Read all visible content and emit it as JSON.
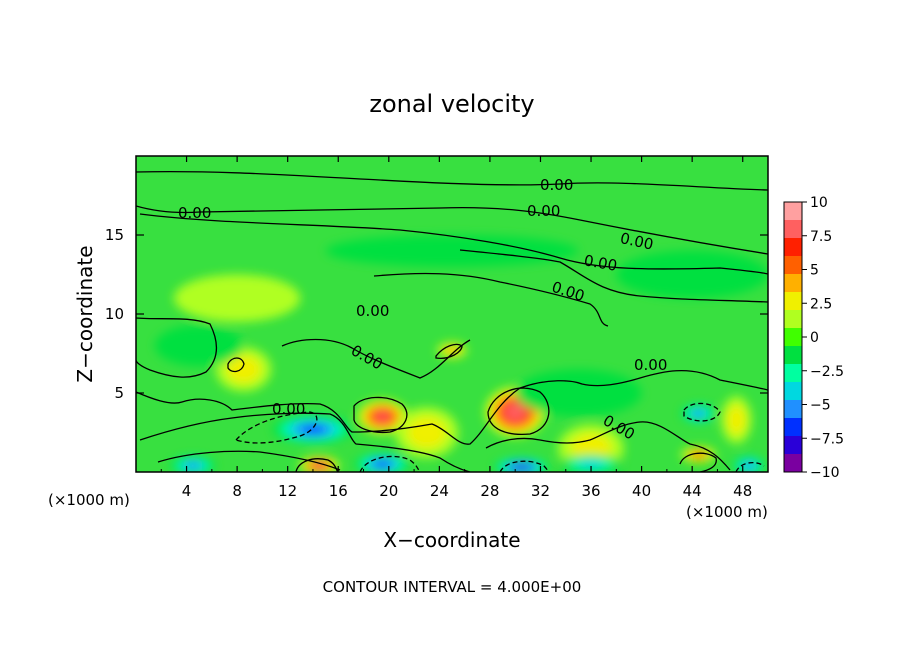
{
  "chart_data": {
    "type": "heatmap",
    "title": "zonal velocity",
    "xlabel": "X−coordinate",
    "ylabel": "Z−coordinate",
    "x_unit": "(×1000 m)",
    "x_unit_right": "(×1000 m)",
    "footer": "CONTOUR INTERVAL = 4.000E+00",
    "xlim": [
      0,
      50
    ],
    "ylim": [
      0,
      20
    ],
    "x_ticks": [
      4,
      8,
      12,
      16,
      20,
      24,
      28,
      32,
      36,
      40,
      44,
      48
    ],
    "y_ticks": [
      5,
      10,
      15
    ],
    "colorbar": {
      "range": [
        -10,
        10
      ],
      "ticks": [
        "10",
        "7.5",
        "5",
        "2.5",
        "0",
        "−2.5",
        "−5",
        "−7.5",
        "−10"
      ],
      "colors": [
        "#7a00a0",
        "#2a00d8",
        "#0030ff",
        "#2090ff",
        "#00d8e0",
        "#00ffa0",
        "#00e040",
        "#40ff00",
        "#b0ff20",
        "#f0f000",
        "#ffb000",
        "#ff6000",
        "#ff2000",
        "#ff6060",
        "#ffa0a0"
      ]
    },
    "contour_label": "0.00",
    "background_color": "#38e040",
    "features": [
      {
        "x": 30,
        "z": 3.8,
        "sx": 2.4,
        "sz": 1.6,
        "v": 8.5
      },
      {
        "x": 19.5,
        "z": 3.5,
        "sx": 2.0,
        "sz": 1.1,
        "v": 8.0
      },
      {
        "x": 14.5,
        "z": 0.4,
        "sx": 1.6,
        "sz": 0.6,
        "v": 8.0
      },
      {
        "x": 44.5,
        "z": 1.1,
        "sx": 1.4,
        "sz": 0.5,
        "v": 5.5
      },
      {
        "x": 25,
        "z": 7.7,
        "sx": 1.2,
        "sz": 0.5,
        "v": 4.5
      },
      {
        "x": 8.5,
        "z": 6.5,
        "sx": 2.2,
        "sz": 1.4,
        "v": 3.0
      },
      {
        "x": 36,
        "z": 1.5,
        "sx": 2.6,
        "sz": 1.5,
        "v": 2.5
      },
      {
        "x": 23,
        "z": 2.5,
        "sx": 2.5,
        "sz": 1.6,
        "v": 2.0
      },
      {
        "x": 47.5,
        "z": 3.3,
        "sx": 1.2,
        "sz": 1.5,
        "v": 2.5
      },
      {
        "x": 14,
        "z": 2.7,
        "sx": 3.2,
        "sz": 0.9,
        "v": -6.5
      },
      {
        "x": 19.5,
        "z": 0.5,
        "sx": 2.2,
        "sz": 0.7,
        "v": -6.5
      },
      {
        "x": 30.5,
        "z": 0.3,
        "sx": 2.2,
        "sz": 0.6,
        "v": -8.0
      },
      {
        "x": 44.5,
        "z": 3.7,
        "sx": 1.4,
        "sz": 0.6,
        "v": -5.5
      },
      {
        "x": 4.5,
        "z": 0.4,
        "sx": 1.8,
        "sz": 0.6,
        "v": -5.5
      },
      {
        "x": 36,
        "z": 0.5,
        "sx": 2.5,
        "sz": 0.6,
        "v": -4.5
      },
      {
        "x": 48.5,
        "z": 0.4,
        "sx": 1.3,
        "sz": 0.6,
        "v": -5.5
      },
      {
        "x": 5,
        "z": 8,
        "sx": 3.5,
        "sz": 1.3,
        "v": -2.0
      },
      {
        "x": 35,
        "z": 5.0,
        "sx": 5,
        "sz": 1.5,
        "v": -2.0
      },
      {
        "x": 25,
        "z": 14.0,
        "sx": 10,
        "sz": 1.0,
        "v": -1.5
      },
      {
        "x": 44,
        "z": 12.5,
        "sx": 6,
        "sz": 1.5,
        "v": -1.2
      },
      {
        "x": 8,
        "z": 11,
        "sx": 5,
        "sz": 1.5,
        "v": 0.8
      }
    ]
  }
}
